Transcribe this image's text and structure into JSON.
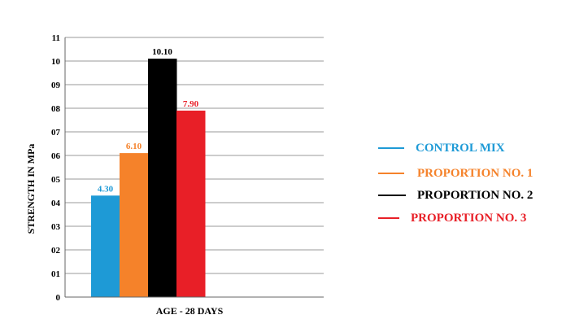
{
  "chart_data": {
    "type": "bar",
    "categories": [
      "AGE - 28 DAYS"
    ],
    "series": [
      {
        "name": "CONTROL MIX",
        "color": "#1e9ad6",
        "values": [
          4.3
        ],
        "label": "4.30"
      },
      {
        "name": "PROPORTION NO. 1",
        "color": "#f5822a",
        "values": [
          6.1
        ],
        "label": "6.10"
      },
      {
        "name": "PROPORTION NO. 2",
        "color": "#000000",
        "values": [
          10.1
        ],
        "label": "10.10"
      },
      {
        "name": "PROPORTION NO. 3",
        "color": "#e81f27",
        "values": [
          7.9
        ],
        "label": "7.90"
      }
    ],
    "ylabel": "STRENGTH IN MPa",
    "xlabel": "AGE - 28 DAYS",
    "ylim": [
      0,
      11
    ],
    "yticks": [
      "0",
      "01",
      "02",
      "03",
      "04",
      "05",
      "06",
      "07",
      "08",
      "09",
      "10",
      "11"
    ],
    "grid": true,
    "legend_position": "right"
  }
}
